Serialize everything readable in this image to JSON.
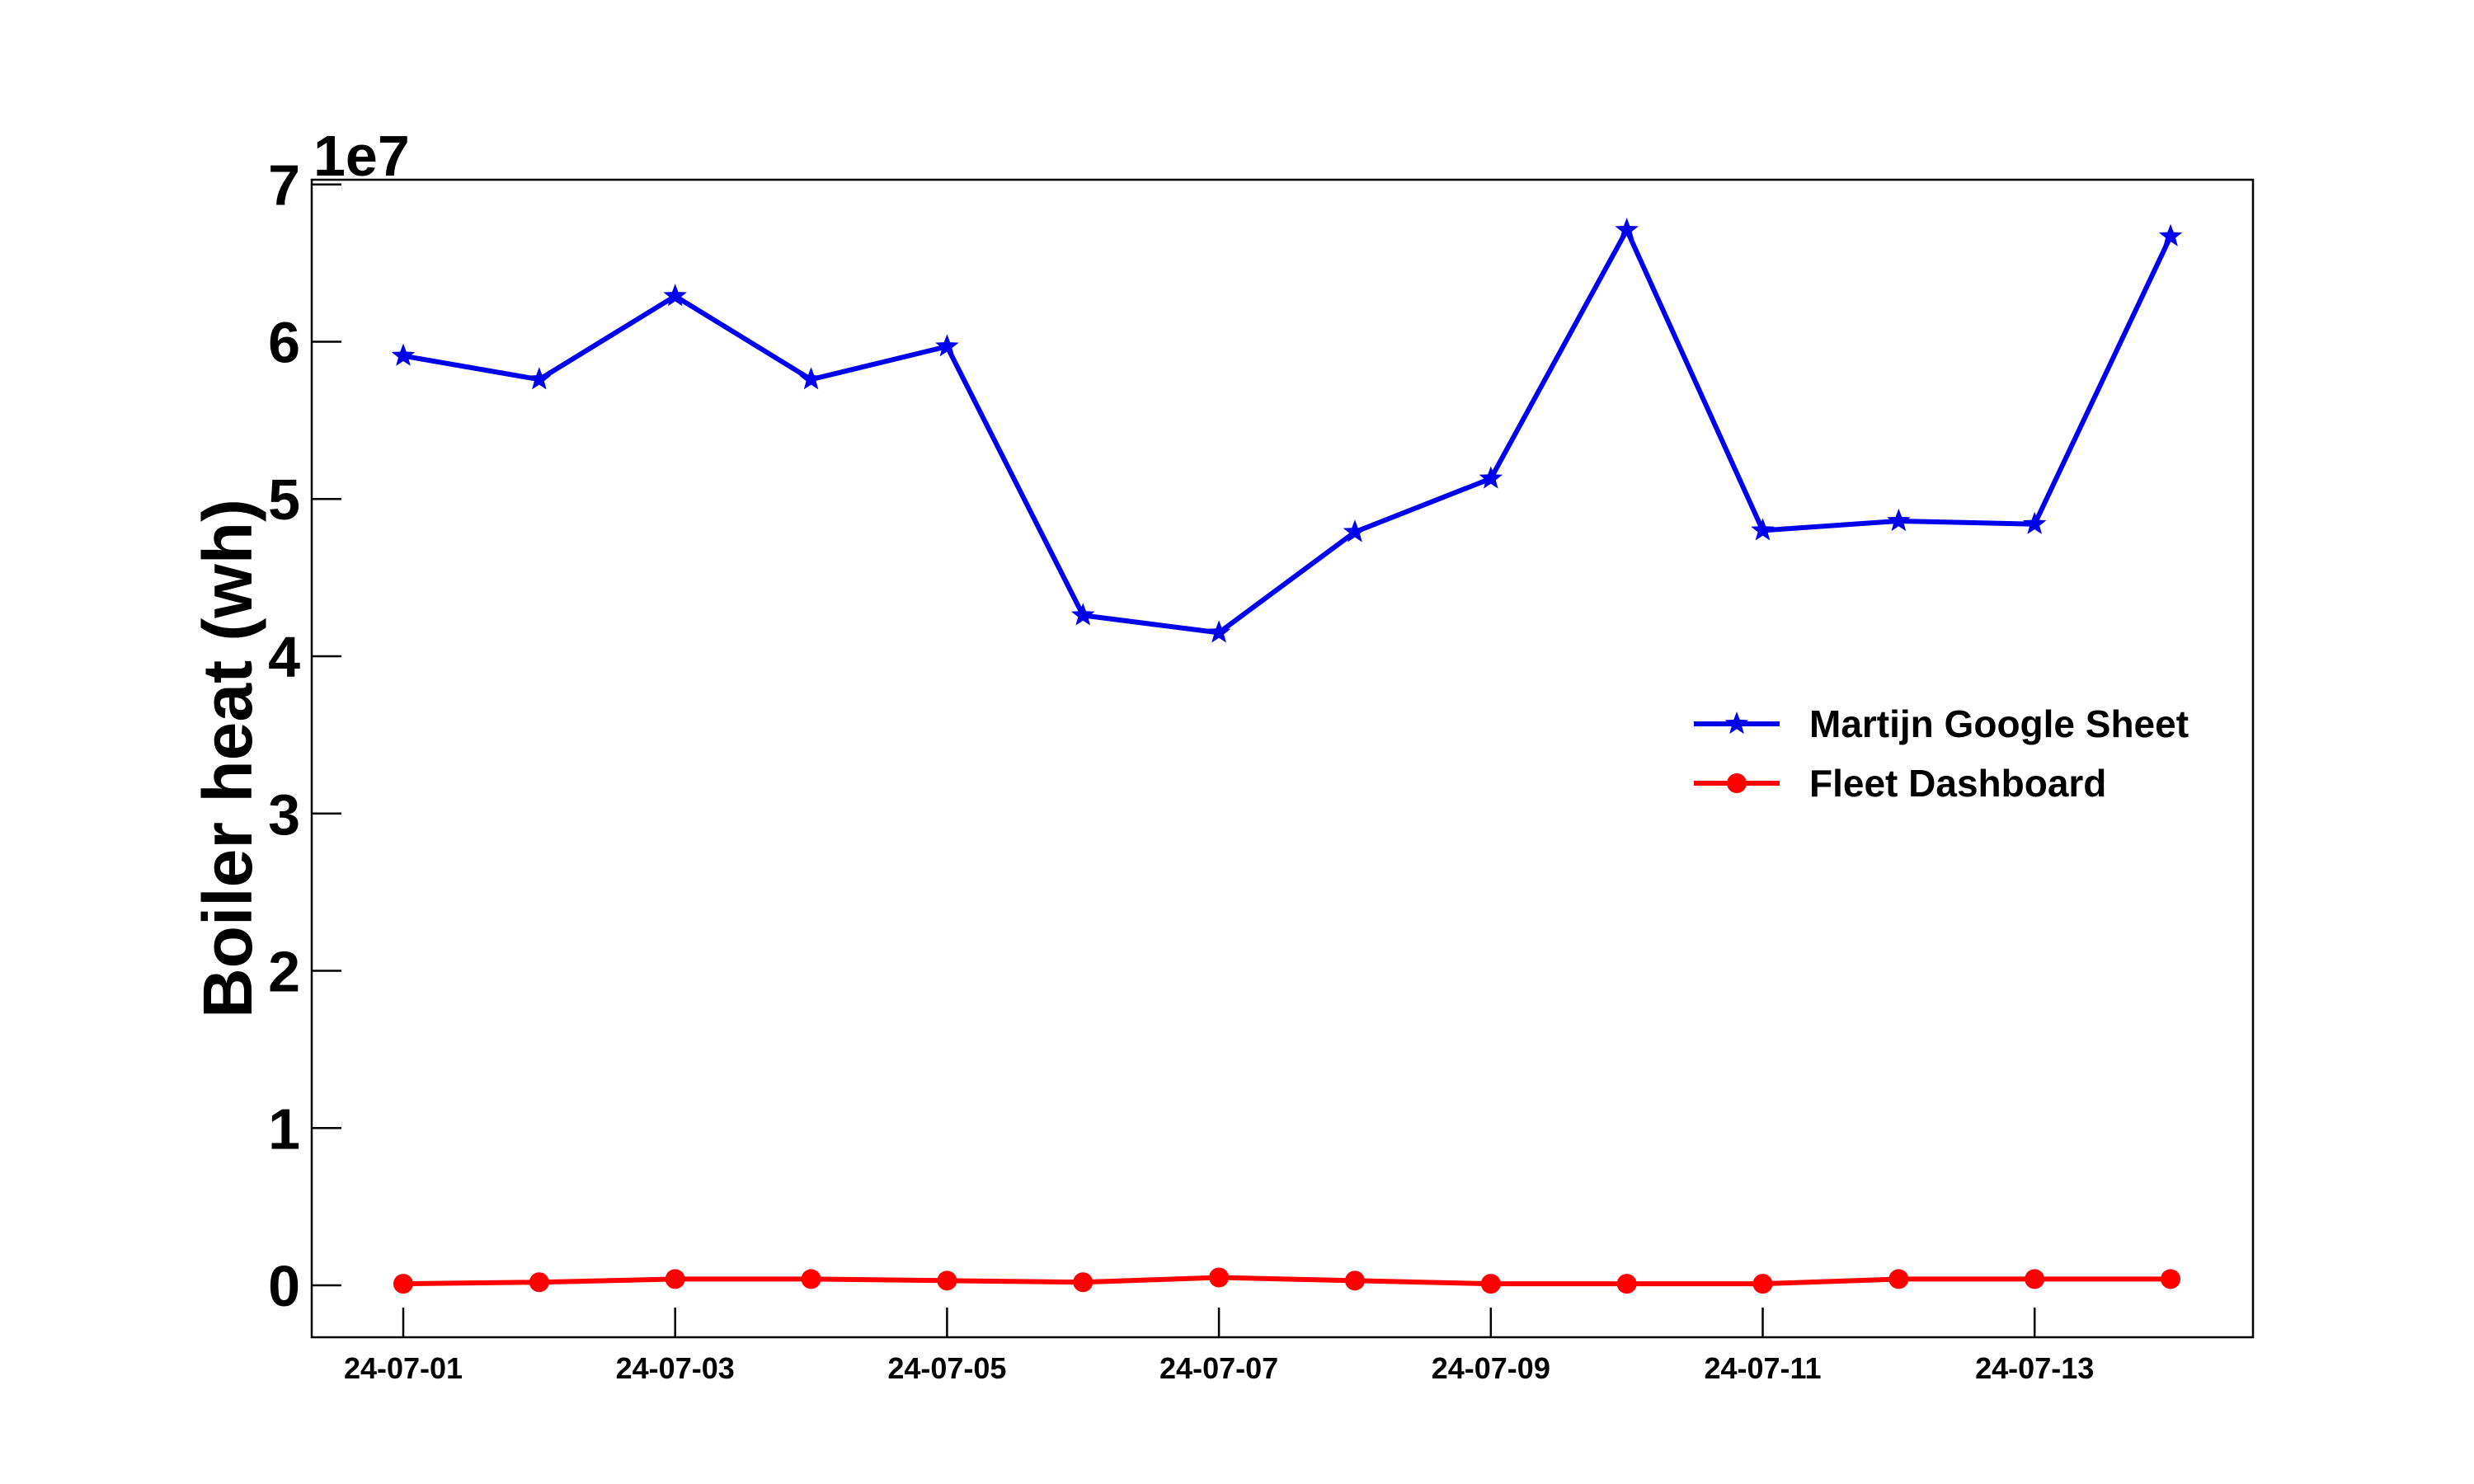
{
  "chart_data": {
    "type": "line",
    "title": "",
    "xlabel": "",
    "ylabel": "Boiler heat (wh)",
    "y_offset_label": "1e7",
    "x": [
      "24-07-01",
      "24-07-02",
      "24-07-03",
      "24-07-04",
      "24-07-05",
      "24-07-06",
      "24-07-07",
      "24-07-08",
      "24-07-09",
      "24-07-10",
      "24-07-11",
      "24-07-12",
      "24-07-13",
      "24-07-14"
    ],
    "x_tick_labels": [
      "24-07-01",
      "24-07-03",
      "24-07-05",
      "24-07-07",
      "24-07-09",
      "24-07-11",
      "24-07-13"
    ],
    "y_ticks": [
      0,
      1,
      2,
      3,
      4,
      5,
      6,
      7
    ],
    "y_tick_labels": [
      "0",
      "1",
      "2",
      "3",
      "4",
      "5",
      "6",
      "7"
    ],
    "ylim": [
      -0.33,
      7.03
    ],
    "grid": false,
    "legend_position": "right",
    "series": [
      {
        "name": "Martijn Google Sheet",
        "color": "#0000ee",
        "marker": "star",
        "values": [
          5.91,
          5.76,
          6.29,
          5.76,
          5.97,
          4.26,
          4.15,
          4.79,
          5.13,
          6.71,
          4.8,
          4.86,
          4.84,
          6.67
        ]
      },
      {
        "name": "Fleet Dashboard",
        "color": "#ff0000",
        "marker": "circle",
        "values": [
          0.01,
          0.02,
          0.04,
          0.04,
          0.03,
          0.02,
          0.05,
          0.03,
          0.01,
          0.01,
          0.01,
          0.04,
          0.04,
          0.04
        ]
      }
    ]
  }
}
